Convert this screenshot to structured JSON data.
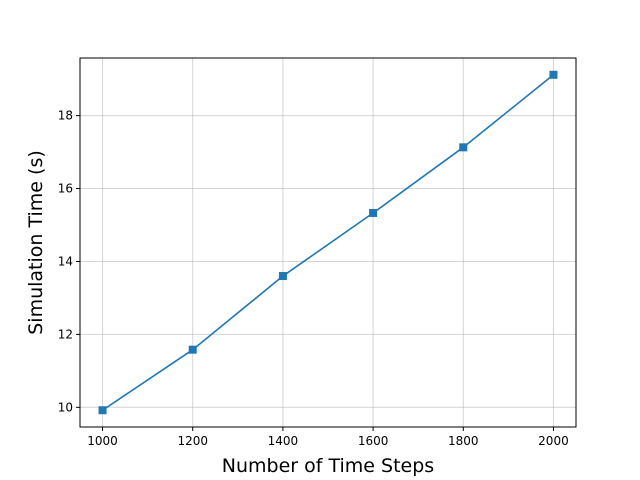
{
  "chart_data": {
    "type": "line",
    "title": "",
    "xlabel": "Number of Time Steps",
    "ylabel": "Simulation Time (s)",
    "x": [
      1000,
      1200,
      1400,
      1600,
      1800,
      2000
    ],
    "series": [
      {
        "values": [
          9.92,
          11.58,
          13.6,
          15.33,
          17.13,
          19.12
        ],
        "color": "#1f77b4",
        "marker": "square"
      }
    ],
    "xticks": [
      1000,
      1200,
      1400,
      1600,
      1800,
      2000
    ],
    "xtick_labels": [
      "1000",
      "1200",
      "1400",
      "1600",
      "1800",
      "2000"
    ],
    "yticks": [
      10,
      12,
      14,
      16,
      18
    ],
    "ytick_labels": [
      "10",
      "12",
      "14",
      "16",
      "18"
    ],
    "xlim": [
      950,
      2050
    ],
    "ylim": [
      9.46,
      19.58
    ],
    "grid": true
  }
}
